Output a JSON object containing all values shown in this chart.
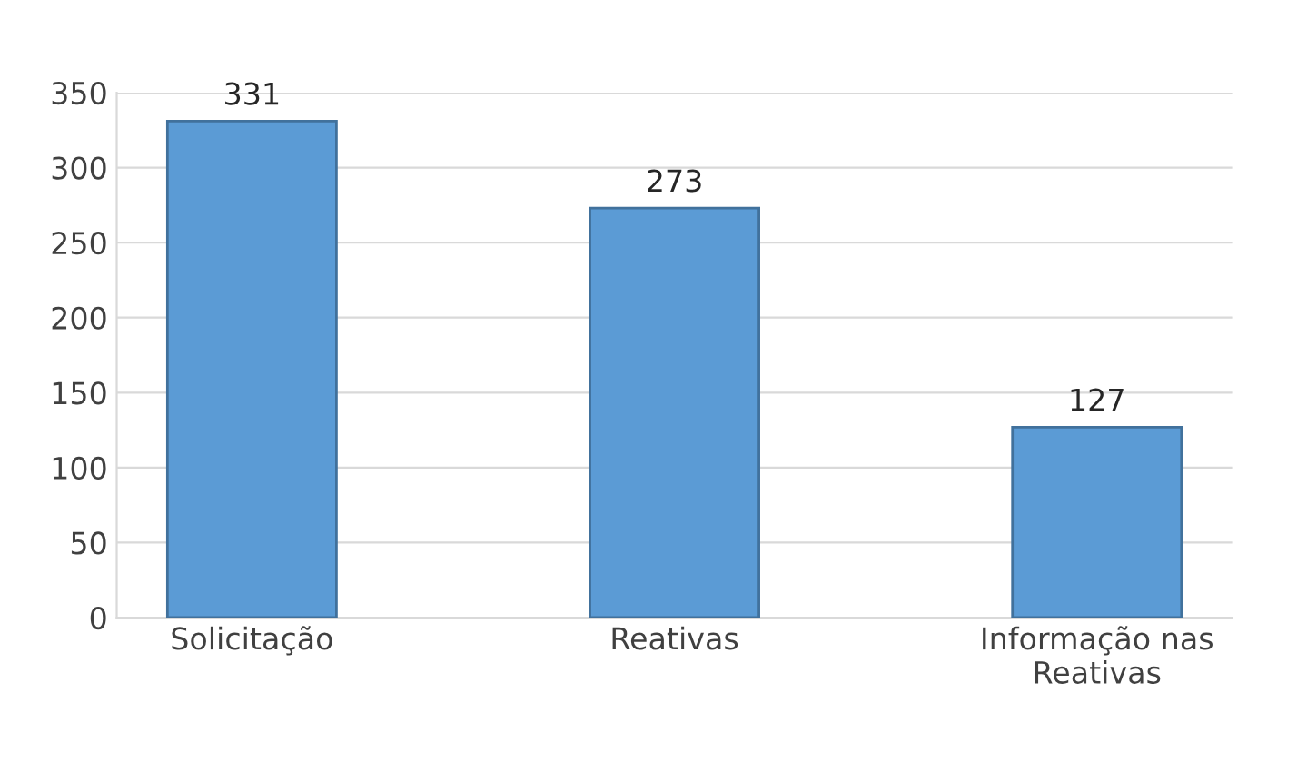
{
  "chart_data": {
    "type": "bar",
    "categories": [
      "Solicitação",
      "Reativas",
      "Informação nas\nReativas"
    ],
    "values": [
      331,
      273,
      127
    ],
    "color": "#5b9bd5",
    "ylim": [
      0,
      350
    ],
    "yticks": [
      0,
      50,
      100,
      150,
      200,
      250,
      300,
      350
    ],
    "grid": "y",
    "data_labels": true
  }
}
